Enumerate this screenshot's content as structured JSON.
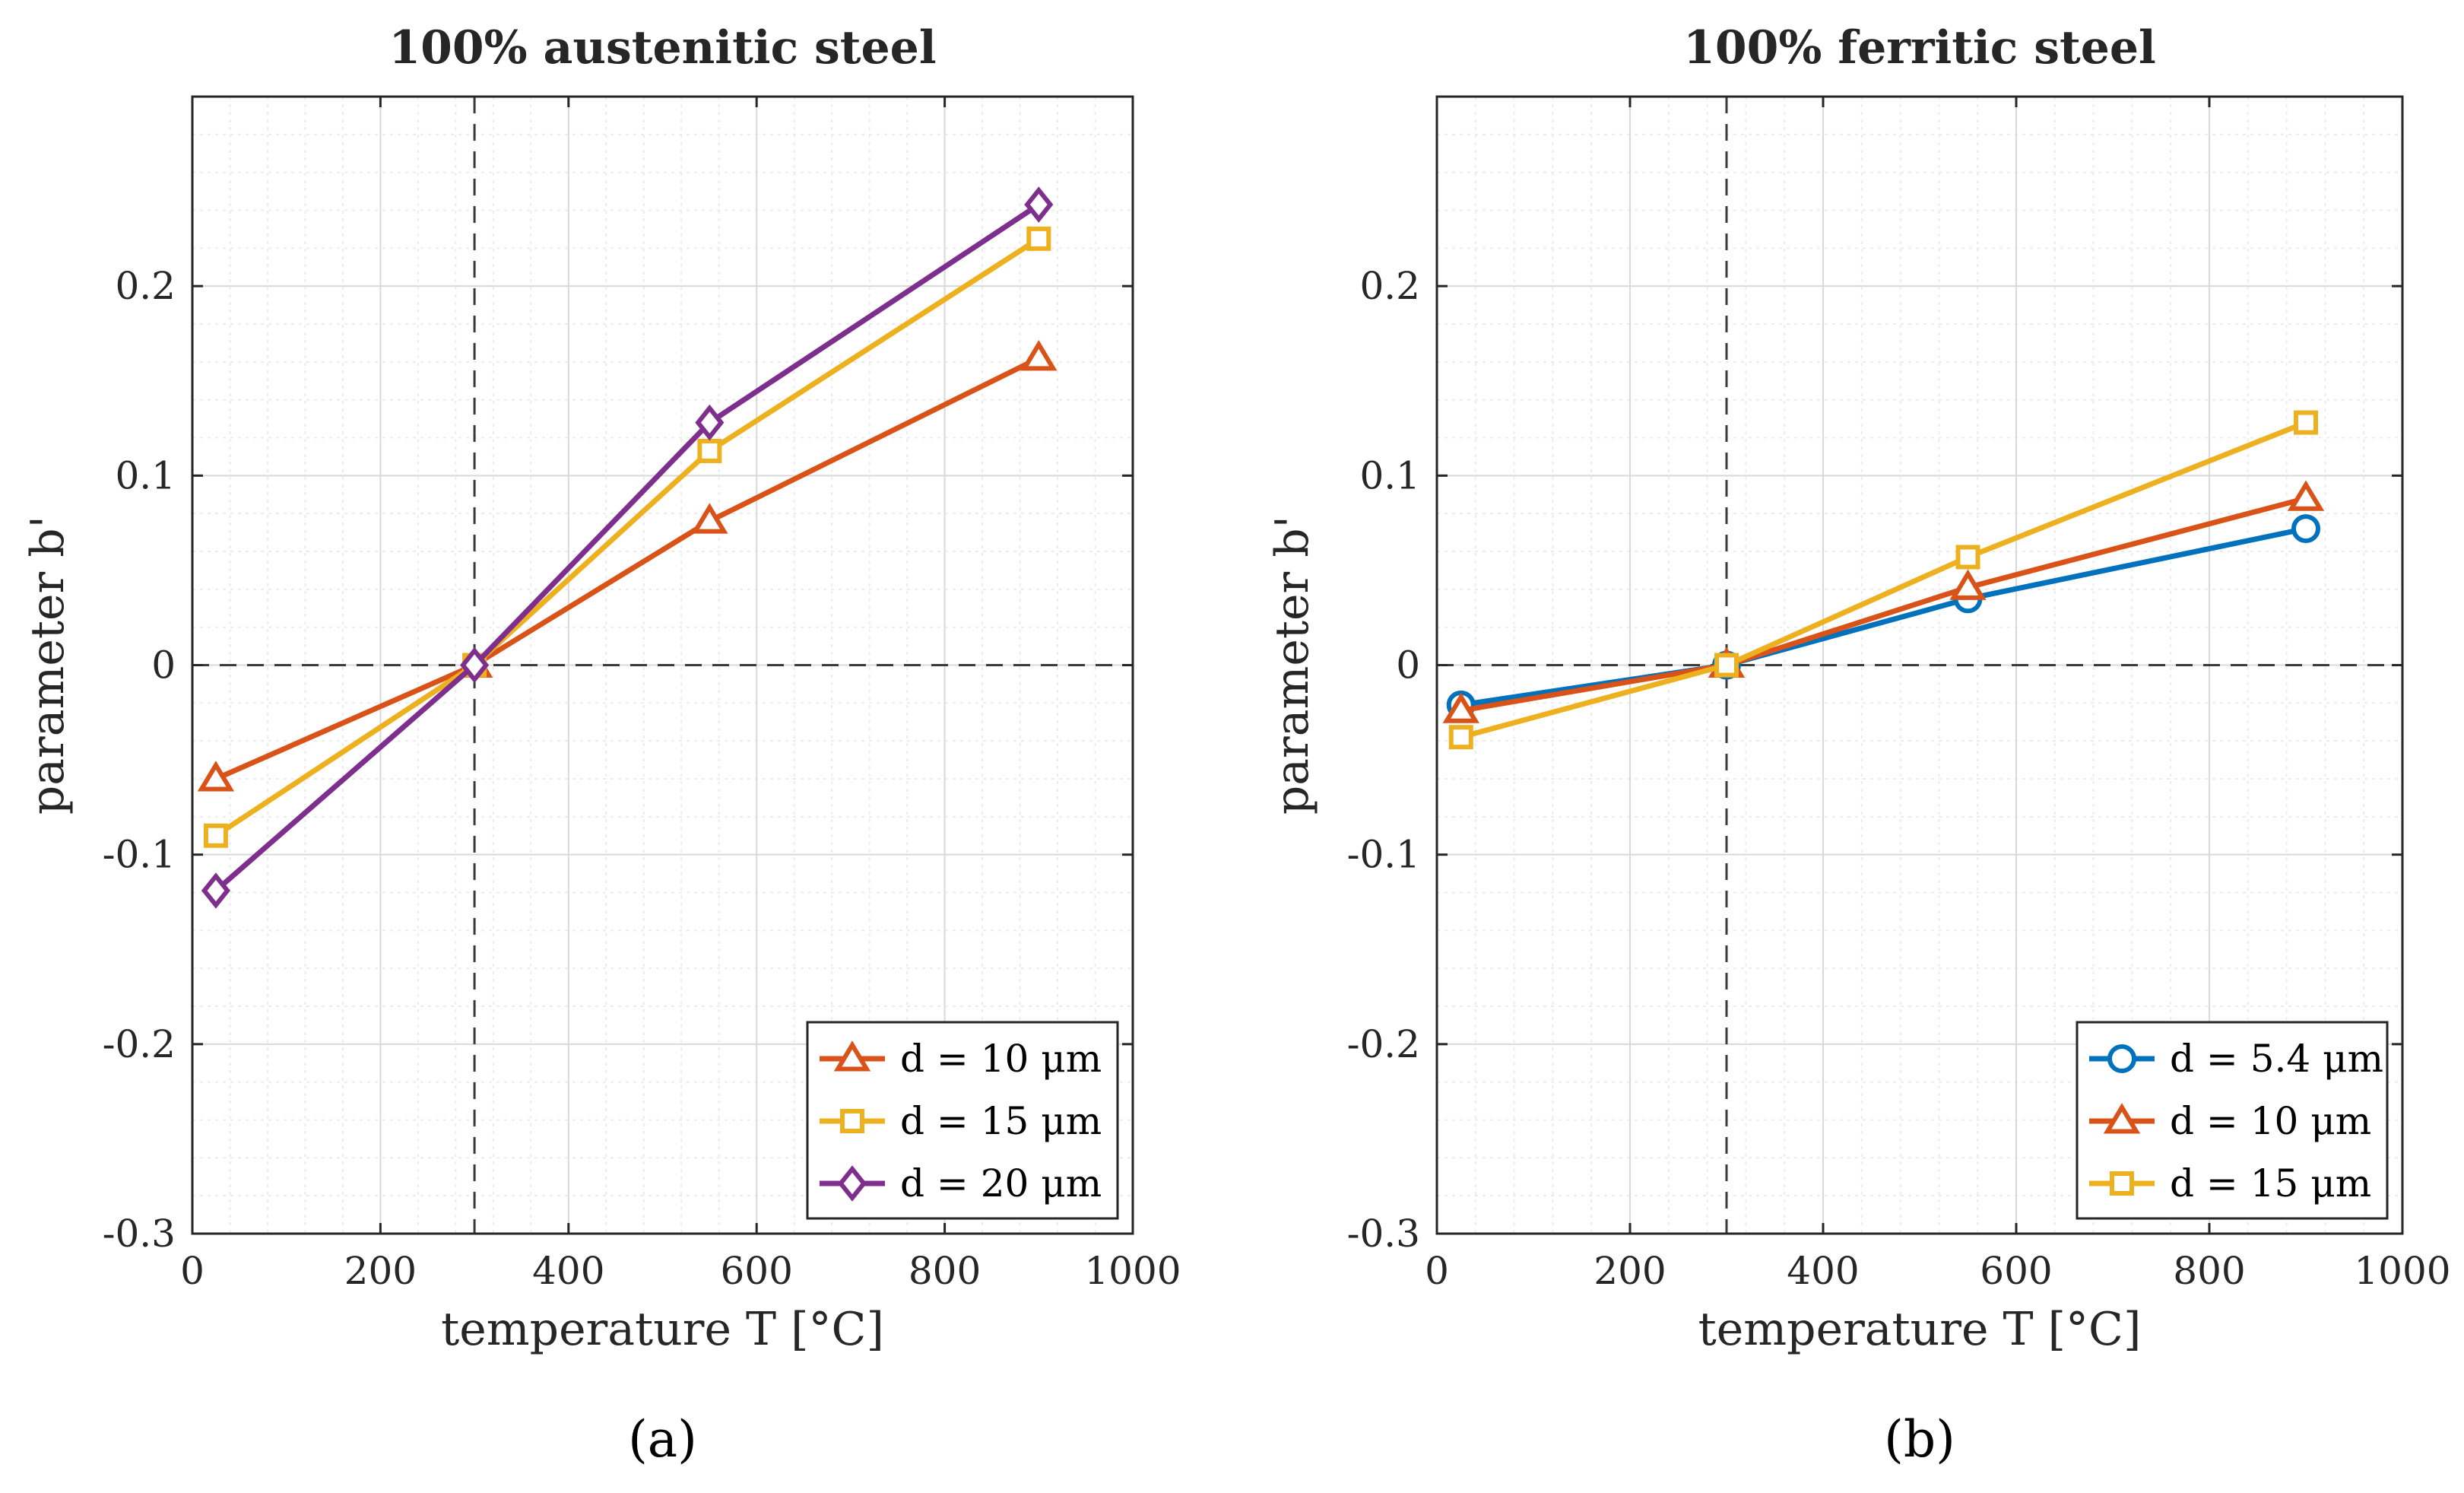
{
  "colors": {
    "series_blue": "#0072BD",
    "series_orange": "#D95319",
    "series_yellow": "#EDB120",
    "series_purple": "#7E2F8E",
    "axis": "#262626",
    "grid_major": "#d9d9d9",
    "grid_minor": "#ececec",
    "dashed_ref": "#3a3a3a"
  },
  "chart_data": [
    {
      "type": "line",
      "title": "100% austenitic steel",
      "xlabel": "temperature T [°C]",
      "ylabel": "parameter b'",
      "panel_label": "(a)",
      "xlim": [
        0,
        1000
      ],
      "ylim": [
        -0.3,
        0.3
      ],
      "xticks": [
        0,
        200,
        400,
        600,
        800,
        1000
      ],
      "xtick_labels": [
        "0",
        "200",
        "400",
        "600",
        "800",
        "1000"
      ],
      "yticks": [
        -0.3,
        -0.2,
        -0.1,
        0,
        0.1,
        0.2
      ],
      "ytick_labels": [
        "-0.3",
        "-0.2",
        "-0.1",
        "0",
        "0.1",
        "0.2"
      ],
      "reference_lines": {
        "x": 300,
        "y": 0
      },
      "grid": true,
      "legend_position": "bottom-right",
      "series": [
        {
          "name": "d = 10 μm",
          "color": "#D95319",
          "marker": "triangle",
          "x": [
            25,
            300,
            550,
            900
          ],
          "y": [
            -0.06,
            0.0,
            0.076,
            0.162
          ]
        },
        {
          "name": "d = 15 μm",
          "color": "#EDB120",
          "marker": "square",
          "x": [
            25,
            300,
            550,
            900
          ],
          "y": [
            -0.09,
            0.0,
            0.113,
            0.225
          ]
        },
        {
          "name": "d = 20 μm",
          "color": "#7E2F8E",
          "marker": "diamond",
          "x": [
            25,
            300,
            550,
            900
          ],
          "y": [
            -0.119,
            0.0,
            0.128,
            0.243
          ]
        }
      ]
    },
    {
      "type": "line",
      "title": "100% ferritic steel",
      "xlabel": "temperature T [°C]",
      "ylabel": "parameter b'",
      "panel_label": "(b)",
      "xlim": [
        0,
        1000
      ],
      "ylim": [
        -0.3,
        0.3
      ],
      "xticks": [
        0,
        200,
        400,
        600,
        800,
        1000
      ],
      "xtick_labels": [
        "0",
        "200",
        "400",
        "600",
        "800",
        "1000"
      ],
      "yticks": [
        -0.3,
        -0.2,
        -0.1,
        0,
        0.1,
        0.2
      ],
      "ytick_labels": [
        "-0.3",
        "-0.2",
        "-0.1",
        "0",
        "0.1",
        "0.2"
      ],
      "reference_lines": {
        "x": 300,
        "y": 0
      },
      "grid": true,
      "legend_position": "bottom-right",
      "series": [
        {
          "name": "d = 5.4 μm",
          "color": "#0072BD",
          "marker": "circle",
          "x": [
            25,
            300,
            550,
            900
          ],
          "y": [
            -0.021,
            0.0,
            0.035,
            0.072
          ]
        },
        {
          "name": "d = 10 μm",
          "color": "#D95319",
          "marker": "triangle",
          "x": [
            25,
            300,
            550,
            900
          ],
          "y": [
            -0.024,
            0.0,
            0.041,
            0.088
          ]
        },
        {
          "name": "d = 15 μm",
          "color": "#EDB120",
          "marker": "square",
          "x": [
            25,
            300,
            550,
            900
          ],
          "y": [
            -0.038,
            0.0,
            0.057,
            0.128
          ]
        }
      ]
    }
  ]
}
